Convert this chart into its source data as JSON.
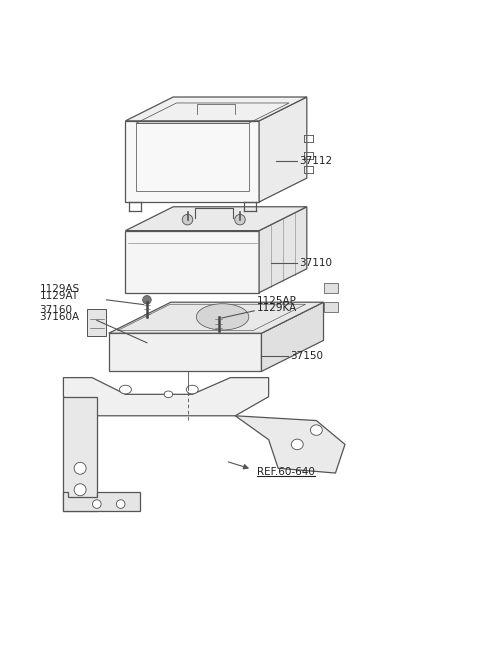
{
  "bg_color": "#ffffff",
  "line_color": "#555555",
  "text_color": "#222222",
  "label_37112": "37112",
  "label_37110": "37110",
  "label_37150": "37150",
  "label_1129AS": "1129AS",
  "label_1129AT": "1129AT",
  "label_37160": "37160",
  "label_37160A": "37160A",
  "label_1125AP": "1125AP",
  "label_1129KA": "1129KA",
  "label_ref": "REF.60-640"
}
